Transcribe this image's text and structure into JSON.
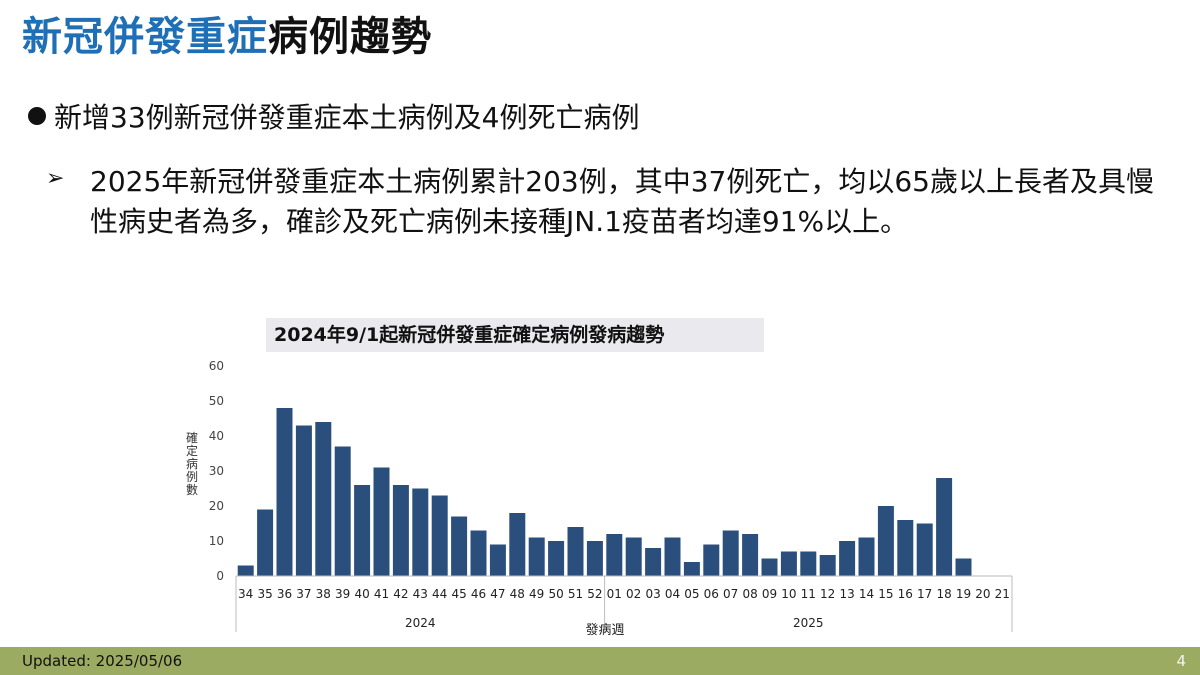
{
  "slide": {
    "title_highlight": "新冠併發重症",
    "title_rest": "病例趨勢",
    "bullet": "新增33例新冠併發重症本土病例及4例死亡病例",
    "sub_bullet": "2025年新冠併發重症本土病例累計203例，其中37例死亡，均以65歲以上長者及具慢性病史者為多，確診及死亡病例未接種JN.1疫苗者均達91%以上。"
  },
  "footer": {
    "updated": "Updated: 2025/05/06",
    "page_number": "4"
  },
  "colors": {
    "title_accent": "#1f6fb6",
    "bar": "#2b4f7c",
    "footer_bg": "#9bab61"
  },
  "chart_data": {
    "type": "bar",
    "title": "2024年9/1起新冠併發重症確定病例發病趨勢",
    "xlabel": "發病週",
    "ylabel": "確定病例數",
    "ylim": [
      0,
      60
    ],
    "yticks": [
      0,
      10,
      20,
      30,
      40,
      50,
      60
    ],
    "grid": false,
    "categories": [
      "34",
      "35",
      "36",
      "37",
      "38",
      "39",
      "40",
      "41",
      "42",
      "43",
      "44",
      "45",
      "46",
      "47",
      "48",
      "49",
      "50",
      "51",
      "52",
      "01",
      "02",
      "03",
      "04",
      "05",
      "06",
      "07",
      "08",
      "09",
      "10",
      "11",
      "12",
      "13",
      "14",
      "15",
      "16",
      "17",
      "18",
      "19",
      "20",
      "21"
    ],
    "values": [
      3,
      19,
      48,
      43,
      44,
      37,
      26,
      31,
      26,
      25,
      23,
      17,
      13,
      9,
      18,
      11,
      10,
      14,
      10,
      12,
      11,
      8,
      11,
      4,
      9,
      13,
      12,
      5,
      7,
      7,
      6,
      10,
      11,
      20,
      16,
      15,
      28,
      5,
      0,
      0
    ],
    "year_groups": [
      {
        "label": "2024",
        "count": 19
      },
      {
        "label": "2025",
        "count": 21
      }
    ]
  }
}
